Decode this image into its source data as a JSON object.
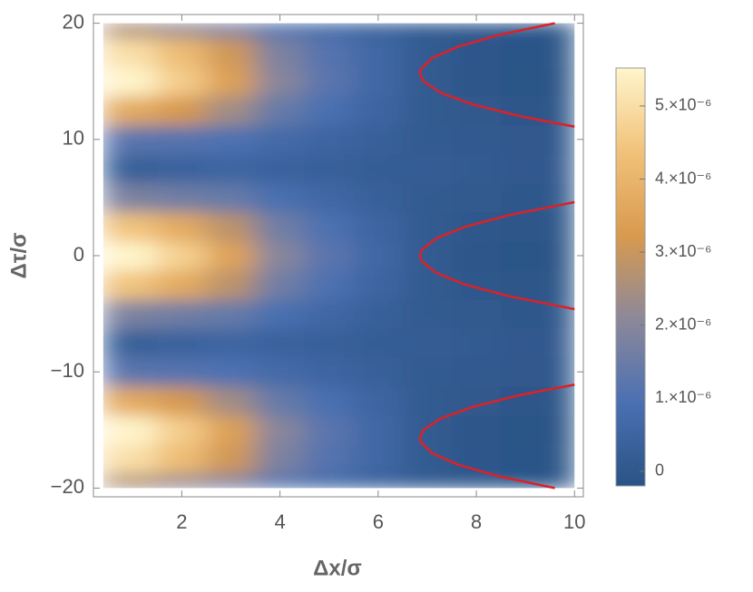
{
  "chart_data": {
    "type": "density",
    "x_label": "Δx/σ",
    "y_label": "Δτ/σ",
    "xlim": [
      0.2,
      10.18
    ],
    "ylim": [
      -20.75,
      20.75
    ],
    "xticks": [
      2,
      4,
      6,
      8,
      10
    ],
    "yticks": [
      {
        "value": -20,
        "label": "−20"
      },
      {
        "value": -10,
        "label": "−10"
      },
      0,
      10,
      20
    ],
    "xbins": [
      0.4,
      1.5,
      2.5,
      3.5,
      4.5,
      5.5,
      6.5,
      7.5,
      8.5,
      9.5,
      10
    ],
    "ybins": [
      -20,
      -18.75,
      -16.25,
      -13.75,
      -11.25,
      -8.75,
      -6.25,
      -3.75,
      -1.25,
      1.25,
      3.75,
      6.25,
      8.75,
      11.25,
      13.75,
      16.25,
      18.75,
      20
    ],
    "z": [
      [
        2.6e-06,
        2.2e-06,
        1.8e-06,
        1.1e-06,
        7e-07,
        4e-07,
        1e-07,
        4e-08,
        -4e-08,
        -9e-08
      ],
      [
        5e-06,
        4.2e-06,
        3.1e-06,
        1.8e-06,
        1.1e-06,
        6e-07,
        1e-07,
        -3e-08,
        -1.3e-07,
        -1.8e-07
      ],
      [
        5.5e-06,
        4.6e-06,
        3.4e-06,
        2e-06,
        1.2e-06,
        6e-07,
        1e-07,
        -5e-08,
        -1.5e-07,
        -2e-07
      ],
      [
        3.7e-06,
        3.2e-06,
        2.4e-06,
        1.4e-06,
        9e-07,
        5e-07,
        1e-07,
        0.0,
        -8e-08,
        -1.3e-07
      ],
      [
        1.2e-06,
        1.1e-06,
        1e-06,
        7e-07,
        5e-07,
        3e-07,
        1e-07,
        7e-08,
        2e-08,
        -3e-08
      ],
      [
        3e-07,
        4e-07,
        5e-07,
        4e-07,
        3e-07,
        2e-07,
        2e-07,
        1e-07,
        5e-08,
        0
      ],
      [
        1.8e-06,
        1.6e-06,
        1.4e-06,
        9e-07,
        6e-07,
        3e-07,
        1e-07,
        6e-08,
        -1e-08,
        -6e-08
      ],
      [
        4.4e-06,
        3.7e-06,
        2.8e-06,
        1.6e-06,
        1e-06,
        5e-07,
        1e-07,
        -2e-08,
        -1e-07,
        -1.5e-07
      ],
      [
        5.6e-06,
        4.7e-06,
        3.5e-06,
        2e-06,
        1.2e-06,
        6e-07,
        1e-07,
        -5e-08,
        -1.5e-07,
        -2e-07
      ],
      [
        4.4e-06,
        3.7e-06,
        2.8e-06,
        1.6e-06,
        1e-06,
        5e-07,
        1e-07,
        -2e-08,
        -1e-07,
        -1.5e-07
      ],
      [
        1.8e-06,
        1.6e-06,
        1.4e-06,
        9e-07,
        6e-07,
        3e-07,
        1e-07,
        6e-08,
        -1e-08,
        -6e-08
      ],
      [
        3e-07,
        4e-07,
        5e-07,
        4e-07,
        3e-07,
        2e-07,
        2e-07,
        1e-07,
        5e-08,
        0
      ],
      [
        1.2e-06,
        1.1e-06,
        1e-06,
        7e-07,
        5e-07,
        3e-07,
        1e-07,
        7e-08,
        2e-08,
        -3e-08
      ],
      [
        3.7e-06,
        3.2e-06,
        2.4e-06,
        1.4e-06,
        9e-07,
        5e-07,
        1e-07,
        0.0,
        -8e-08,
        -1.3e-07
      ],
      [
        5.5e-06,
        4.6e-06,
        3.4e-06,
        2e-06,
        1.2e-06,
        6e-07,
        1e-07,
        -5e-08,
        -1.5e-07,
        -2e-07
      ],
      [
        5e-06,
        4.2e-06,
        3.1e-06,
        1.8e-06,
        1.1e-06,
        6e-07,
        1e-07,
        -3e-08,
        -1.3e-07,
        -1.8e-07
      ],
      [
        2.6e-06,
        2.2e-06,
        1.8e-06,
        1.1e-06,
        7e-07,
        4e-07,
        1e-07,
        4e-08,
        -4e-08,
        -9e-08
      ]
    ],
    "zlim": [
      -2e-07,
      5.52e-06
    ],
    "colors": [
      "#2a5385",
      "#4b70b2",
      "#8c889a",
      "#d99a4e",
      "#f1c27a",
      "#fff5cc"
    ],
    "colorbar_ticks": [
      0,
      {
        "value": 1e-06,
        "label": "1.×10⁻⁶"
      },
      {
        "value": 2e-06,
        "label": "2.×10⁻⁶"
      },
      {
        "value": 3e-06,
        "label": "3.×10⁻⁶"
      },
      {
        "value": 4e-06,
        "label": "4.×10⁻⁶"
      },
      {
        "value": 5e-06,
        "label": "5.×10⁻⁶"
      }
    ],
    "contour_color": "#d9222a",
    "contours": [
      {
        "x": [
          9.6,
          8.47,
          7.64,
          7.1,
          6.86,
          6.85,
          6.92,
          7.28,
          7.94,
          8.89,
          10.0
        ],
        "y": [
          20,
          19,
          18,
          17,
          16,
          15.7,
          15,
          14,
          13,
          12,
          11.1
        ]
      },
      {
        "x": [
          10.0,
          8.68,
          7.78,
          7.19,
          6.89,
          6.85,
          6.89,
          7.19,
          7.78,
          8.68,
          10.0
        ],
        "y": [
          4.6,
          3.5,
          2.5,
          1.5,
          0.5,
          0,
          -0.5,
          -1.5,
          -2.5,
          -3.5,
          -4.6
        ]
      },
      {
        "x": [
          10.0,
          8.89,
          7.94,
          7.28,
          6.92,
          6.85,
          6.86,
          7.1,
          7.64,
          8.47,
          9.6
        ],
        "y": [
          -11.1,
          -12,
          -13,
          -14,
          -15,
          -15.7,
          -16,
          -17,
          -18,
          -19,
          -20
        ]
      }
    ]
  }
}
